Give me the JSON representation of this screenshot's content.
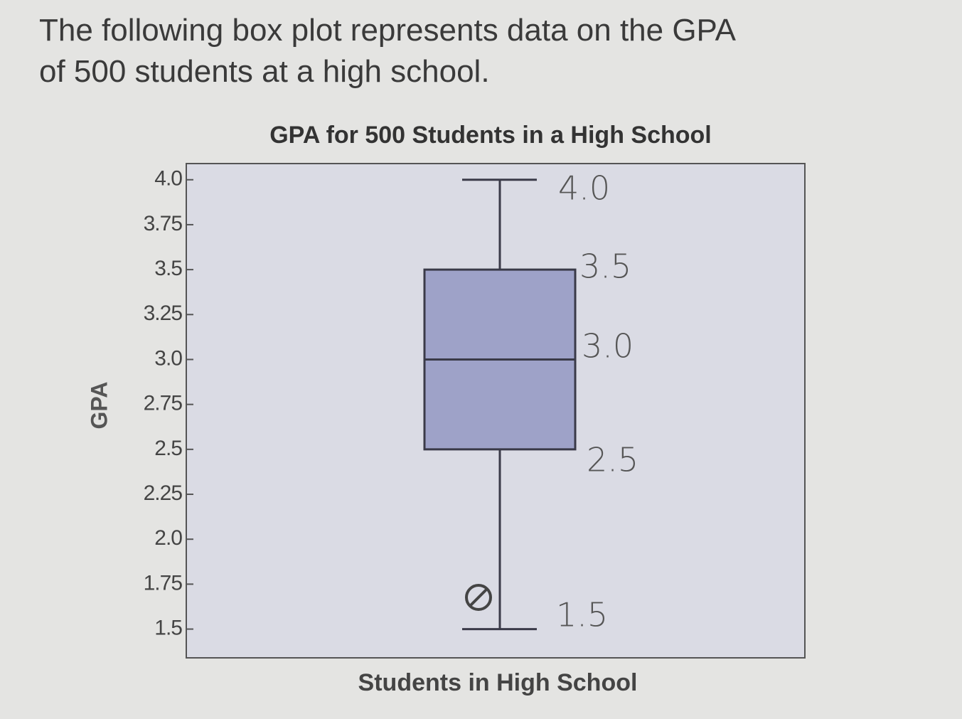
{
  "question": "The following box plot represents data on the GPA of 500 students at a high school.",
  "chart_data": {
    "type": "box",
    "title": "GPA for 500 Students in a High School",
    "x_label": "Students in High School",
    "y_label": "GPA",
    "box": {
      "min": 1.5,
      "q1": 2.5,
      "median": 3.0,
      "q3": 3.5,
      "max": 4.0
    },
    "color": "#9ea2c8",
    "ylim": [
      1.34,
      4.09
    ],
    "yticks": [
      {
        "value": 4,
        "label": "4.0"
      },
      3.75,
      3.5,
      3.25,
      {
        "value": 3,
        "label": "3.0"
      },
      2.75,
      2.5,
      2.25,
      {
        "value": 2,
        "label": "2.0"
      },
      1.75,
      1.5
    ],
    "annotations": [
      "4.0",
      "3.5",
      "3.0",
      "2.5",
      "1.5"
    ]
  }
}
